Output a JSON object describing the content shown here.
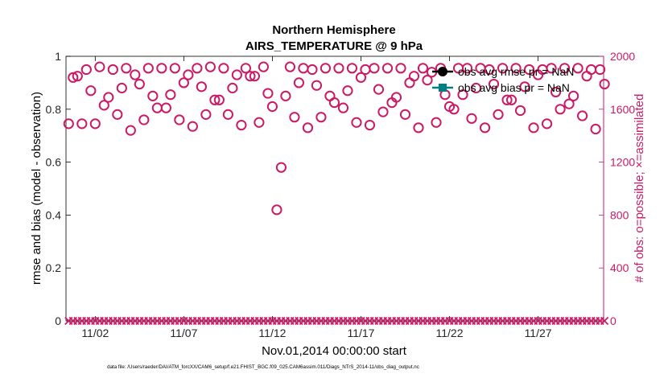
{
  "chart_data": {
    "type": "scatter",
    "title": "Northern Hemisphere",
    "subtitle": "AIRS_TEMPERATURE @ 9 hPa",
    "xlabel": "Nov.01,2014 00:00:00 start",
    "ylabel_left": "rmse and bias (model - observation)",
    "ylabel_right": "# of obs: o=possible; ×=assimilated",
    "footer": "data file: /Users/raeder/DAI/ATM_forcXX/CAM6_setup/f.e21.FHIST_BGC.f09_025.CAM6assim.011/Diags_NTrS_2014-11/obs_diag_output.nc",
    "xlim": [
      0.35,
      30.7
    ],
    "ylim_left": [
      0,
      1
    ],
    "ylim_right": [
      0,
      2000
    ],
    "x_ticks": [
      {
        "v": 2,
        "label": "11/02"
      },
      {
        "v": 7,
        "label": "11/07"
      },
      {
        "v": 12,
        "label": "11/12"
      },
      {
        "v": 17,
        "label": "11/17"
      },
      {
        "v": 22,
        "label": "11/22"
      },
      {
        "v": 27,
        "label": "11/27"
      }
    ],
    "y_ticks_left": [
      {
        "v": 0,
        "label": "0"
      },
      {
        "v": 0.2,
        "label": "0.2"
      },
      {
        "v": 0.4,
        "label": "0.4"
      },
      {
        "v": 0.6,
        "label": "0.6"
      },
      {
        "v": 0.8,
        "label": "0.8"
      },
      {
        "v": 1,
        "label": "1"
      }
    ],
    "y_ticks_right": [
      {
        "v": 0,
        "label": "0"
      },
      {
        "v": 400,
        "label": "400"
      },
      {
        "v": 800,
        "label": "800"
      },
      {
        "v": 1200,
        "label": "1200"
      },
      {
        "v": 1600,
        "label": "1600"
      },
      {
        "v": 2000,
        "label": "2000"
      }
    ],
    "legend_placement": "top-right",
    "grid": false,
    "series": [
      {
        "name": "obs avg rmse pr = NaN",
        "values": []
      },
      {
        "name": "obs avg bias pr = NaN",
        "values": []
      },
      {
        "name": "possible",
        "marker": "circle",
        "points": [
          [
            0.5,
            1490
          ],
          [
            0.75,
            1840
          ],
          [
            1.0,
            1850
          ],
          [
            1.25,
            1490
          ],
          [
            1.5,
            1900
          ],
          [
            1.75,
            1740
          ],
          [
            2.0,
            1490
          ],
          [
            2.25,
            1920
          ],
          [
            2.5,
            1630
          ],
          [
            2.75,
            1690
          ],
          [
            3.0,
            1900
          ],
          [
            3.25,
            1560
          ],
          [
            3.5,
            1760
          ],
          [
            3.75,
            1910
          ],
          [
            4.0,
            1440
          ],
          [
            4.25,
            1860
          ],
          [
            4.5,
            1790
          ],
          [
            4.75,
            1520
          ],
          [
            5.0,
            1910
          ],
          [
            5.25,
            1700
          ],
          [
            5.5,
            1610
          ],
          [
            5.75,
            1910
          ],
          [
            6.0,
            1610
          ],
          [
            6.25,
            1710
          ],
          [
            6.5,
            1910
          ],
          [
            6.75,
            1520
          ],
          [
            7.0,
            1800
          ],
          [
            7.25,
            1860
          ],
          [
            7.5,
            1470
          ],
          [
            7.75,
            1910
          ],
          [
            8.0,
            1770
          ],
          [
            8.25,
            1560
          ],
          [
            8.5,
            1920
          ],
          [
            8.75,
            1670
          ],
          [
            9.0,
            1670
          ],
          [
            9.25,
            1910
          ],
          [
            9.5,
            1560
          ],
          [
            9.75,
            1760
          ],
          [
            10.0,
            1860
          ],
          [
            10.25,
            1480
          ],
          [
            10.5,
            1910
          ],
          [
            10.75,
            1850
          ],
          [
            11.0,
            1850
          ],
          [
            11.25,
            1500
          ],
          [
            11.5,
            1920
          ],
          [
            11.75,
            1720
          ],
          [
            12.0,
            1620
          ],
          [
            12.25,
            840
          ],
          [
            12.5,
            1160
          ],
          [
            12.75,
            1700
          ],
          [
            13.0,
            1920
          ],
          [
            13.25,
            1540
          ],
          [
            13.5,
            1800
          ],
          [
            13.75,
            1910
          ],
          [
            14.0,
            1460
          ],
          [
            14.25,
            1900
          ],
          [
            14.5,
            1780
          ],
          [
            14.75,
            1540
          ],
          [
            15.0,
            1910
          ],
          [
            15.25,
            1700
          ],
          [
            15.5,
            1650
          ],
          [
            15.75,
            1910
          ],
          [
            16.0,
            1610
          ],
          [
            16.25,
            1740
          ],
          [
            16.5,
            1910
          ],
          [
            16.75,
            1500
          ],
          [
            17.0,
            1840
          ],
          [
            17.25,
            1900
          ],
          [
            17.5,
            1480
          ],
          [
            17.75,
            1910
          ],
          [
            18.0,
            1750
          ],
          [
            18.25,
            1580
          ],
          [
            18.5,
            1910
          ],
          [
            18.75,
            1650
          ],
          [
            19.0,
            1690
          ],
          [
            19.25,
            1910
          ],
          [
            19.5,
            1560
          ],
          [
            19.75,
            1800
          ],
          [
            20.0,
            1850
          ],
          [
            20.25,
            1460
          ],
          [
            20.5,
            1910
          ],
          [
            20.75,
            1820
          ],
          [
            21.0,
            1880
          ],
          [
            21.25,
            1500
          ],
          [
            21.5,
            1910
          ],
          [
            21.75,
            1710
          ],
          [
            22.0,
            1620
          ],
          [
            22.25,
            1600
          ],
          [
            22.5,
            1910
          ],
          [
            22.75,
            1710
          ],
          [
            23.0,
            1910
          ],
          [
            23.25,
            1530
          ],
          [
            23.5,
            1760
          ],
          [
            23.75,
            1910
          ],
          [
            24.0,
            1460
          ],
          [
            24.25,
            1900
          ],
          [
            24.5,
            1790
          ],
          [
            24.75,
            1560
          ],
          [
            25.0,
            1910
          ],
          [
            25.25,
            1670
          ],
          [
            25.5,
            1670
          ],
          [
            25.75,
            1910
          ],
          [
            26.0,
            1590
          ],
          [
            26.25,
            1770
          ],
          [
            26.5,
            1900
          ],
          [
            26.75,
            1460
          ],
          [
            27.0,
            1860
          ],
          [
            27.25,
            1900
          ],
          [
            27.5,
            1490
          ],
          [
            27.75,
            1910
          ],
          [
            28.0,
            1730
          ],
          [
            28.25,
            1600
          ],
          [
            28.5,
            1910
          ],
          [
            28.75,
            1640
          ],
          [
            29.0,
            1700
          ],
          [
            29.25,
            1910
          ],
          [
            29.5,
            1550
          ],
          [
            29.75,
            1850
          ],
          [
            30.0,
            1900
          ],
          [
            30.25,
            1450
          ],
          [
            30.5,
            1900
          ],
          [
            30.75,
            1790
          ]
        ]
      },
      {
        "name": "assimilated",
        "marker": "x",
        "values_all": 0
      }
    ],
    "colors": {
      "counts": "#cc1a66",
      "rmse": "#000000",
      "bias": "#008080",
      "axis": "#000000",
      "text": "#000000",
      "tick_text": "#262626"
    }
  }
}
